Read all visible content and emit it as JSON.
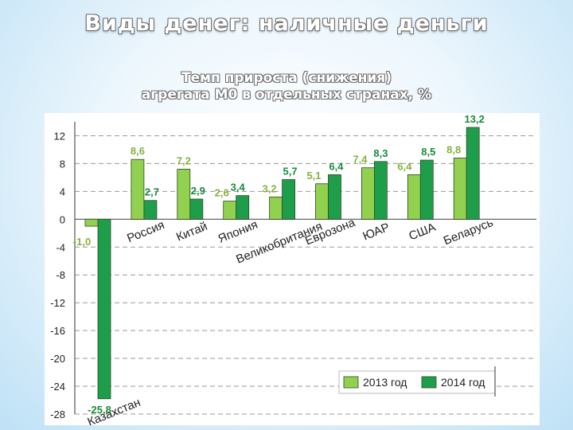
{
  "slide_title": "Виды денег: наличные деньги",
  "chart_data": {
    "type": "bar",
    "title_lines": [
      "Темп прироста (снижения)",
      "агрегата М0 в отдельных странах, %"
    ],
    "categories": [
      "Казахстан",
      "Россия",
      "Китай",
      "Япония",
      "Великобритания",
      "Еврозона",
      "ЮАР",
      "США",
      "Беларусь"
    ],
    "series": [
      {
        "name": "2013 год",
        "values": [
          -1.0,
          8.6,
          7.2,
          2.6,
          3.2,
          5.1,
          7.4,
          6.4,
          8.8
        ],
        "labels": [
          "-1,0",
          "8,6",
          "7,2",
          "2,6",
          "3,2",
          "5,1",
          "7,4",
          "6,4",
          "8,8"
        ]
      },
      {
        "name": "2014 год",
        "values": [
          -25.8,
          2.7,
          2.9,
          3.4,
          5.7,
          6.4,
          8.3,
          8.5,
          13.2
        ],
        "labels": [
          "-25,8",
          "2,7",
          "2,9",
          "3,4",
          "5,7",
          "6,4",
          "8,3",
          "8,5",
          "13,2"
        ]
      }
    ],
    "yticks": [
      12,
      8,
      4,
      0,
      -4,
      -8,
      -12,
      -16,
      -20,
      -24,
      -28
    ],
    "ytick_labels": [
      "12",
      "8",
      "4",
      "0",
      "-4",
      "-8",
      "-12",
      "-16",
      "-20",
      "-24",
      "-28"
    ],
    "ylim": [
      -28,
      14
    ],
    "grid": true,
    "legend_position": "bottom-right",
    "colors": {
      "series_2013": "#92d050",
      "series_2014": "#1e9e4a",
      "label_2013": "#86b23c",
      "label_2014": "#1b8a3c",
      "bar_stroke": "#2d4a23"
    }
  }
}
